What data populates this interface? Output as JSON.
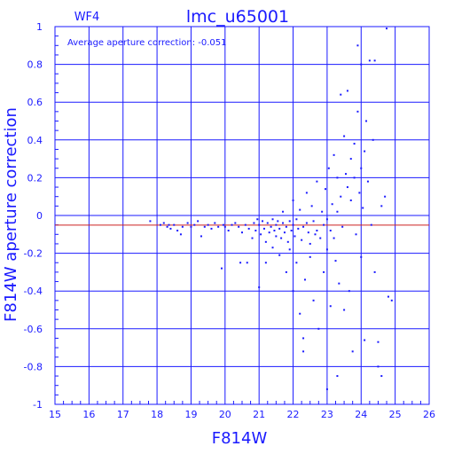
{
  "chart_data": {
    "type": "scatter",
    "chip_label": "WF4",
    "title": "lmc_u65001",
    "annotation": "Average aperture correction: -0.051",
    "xlabel": "F814W",
    "ylabel": "F814W aperture correction",
    "xlim": [
      15,
      26
    ],
    "ylim": [
      -1,
      1
    ],
    "x_ticks": [
      "15",
      "16",
      "17",
      "18",
      "19",
      "20",
      "21",
      "22",
      "23",
      "24",
      "25",
      "26"
    ],
    "y_ticks": [
      "-1",
      "-0.8",
      "-0.6",
      "-0.4",
      "-0.2",
      "0",
      "0.2",
      "0.4",
      "0.6",
      "0.8",
      "1"
    ],
    "grid": true,
    "reference_line": -0.051,
    "colors": {
      "axis": "#1a1aff",
      "points": "#1a1aff",
      "reference_line": "#cc2222"
    },
    "points": [
      [
        17.8,
        -0.03
      ],
      [
        18.1,
        -0.05
      ],
      [
        18.2,
        -0.04
      ],
      [
        18.3,
        -0.06
      ],
      [
        18.35,
        -0.05
      ],
      [
        18.4,
        -0.07
      ],
      [
        18.5,
        -0.05
      ],
      [
        18.6,
        -0.08
      ],
      [
        18.7,
        -0.1
      ],
      [
        18.75,
        -0.06
      ],
      [
        18.9,
        -0.04
      ],
      [
        19.0,
        -0.06
      ],
      [
        19.1,
        -0.05
      ],
      [
        19.2,
        -0.03
      ],
      [
        19.3,
        -0.11
      ],
      [
        19.4,
        -0.06
      ],
      [
        19.5,
        -0.05
      ],
      [
        19.6,
        -0.07
      ],
      [
        19.7,
        -0.04
      ],
      [
        19.8,
        -0.06
      ],
      [
        19.9,
        -0.28
      ],
      [
        19.95,
        -0.05
      ],
      [
        20.0,
        -0.06
      ],
      [
        20.1,
        -0.08
      ],
      [
        20.2,
        -0.05
      ],
      [
        20.3,
        -0.04
      ],
      [
        20.4,
        -0.06
      ],
      [
        20.45,
        -0.25
      ],
      [
        20.5,
        -0.09
      ],
      [
        20.6,
        -0.05
      ],
      [
        20.65,
        -0.25
      ],
      [
        20.7,
        -0.07
      ],
      [
        20.8,
        -0.12
      ],
      [
        20.85,
        -0.04
      ],
      [
        20.9,
        -0.08
      ],
      [
        20.95,
        -0.02
      ],
      [
        21.0,
        -0.05
      ],
      [
        21.0,
        -0.38
      ],
      [
        21.05,
        -0.1
      ],
      [
        21.1,
        -0.03
      ],
      [
        21.15,
        -0.07
      ],
      [
        21.2,
        -0.14
      ],
      [
        21.2,
        -0.25
      ],
      [
        21.25,
        -0.04
      ],
      [
        21.3,
        -0.09
      ],
      [
        21.35,
        -0.06
      ],
      [
        21.4,
        -0.02
      ],
      [
        21.4,
        -0.17
      ],
      [
        21.45,
        -0.08
      ],
      [
        21.5,
        -0.05
      ],
      [
        21.5,
        -0.11
      ],
      [
        21.55,
        -0.03
      ],
      [
        21.6,
        -0.07
      ],
      [
        21.6,
        -0.21
      ],
      [
        21.65,
        -0.12
      ],
      [
        21.7,
        -0.04
      ],
      [
        21.7,
        0.02
      ],
      [
        21.75,
        -0.09
      ],
      [
        21.8,
        -0.06
      ],
      [
        21.8,
        -0.3
      ],
      [
        21.85,
        -0.14
      ],
      [
        21.9,
        -0.03
      ],
      [
        21.9,
        -0.18
      ],
      [
        21.95,
        -0.08
      ],
      [
        22.0,
        -0.05
      ],
      [
        22.0,
        -0.4
      ],
      [
        22.0,
        0.08
      ],
      [
        22.05,
        -0.11
      ],
      [
        22.1,
        -0.02
      ],
      [
        22.1,
        -0.25
      ],
      [
        22.15,
        -0.07
      ],
      [
        22.2,
        -0.52
      ],
      [
        22.2,
        0.03
      ],
      [
        22.25,
        -0.13
      ],
      [
        22.3,
        -0.06
      ],
      [
        22.3,
        -0.72
      ],
      [
        22.35,
        -0.34
      ],
      [
        22.4,
        -0.04
      ],
      [
        22.4,
        0.12
      ],
      [
        22.45,
        -0.09
      ],
      [
        22.5,
        -0.15
      ],
      [
        22.5,
        -0.22
      ],
      [
        22.55,
        0.05
      ],
      [
        22.6,
        -0.03
      ],
      [
        22.6,
        -0.45
      ],
      [
        22.65,
        -0.1
      ],
      [
        22.7,
        -0.08
      ],
      [
        22.7,
        0.18
      ],
      [
        22.75,
        -0.6
      ],
      [
        22.8,
        -0.12
      ],
      [
        22.85,
        0.02
      ],
      [
        22.9,
        -0.05
      ],
      [
        22.9,
        -0.3
      ],
      [
        22.95,
        0.14
      ],
      [
        23.0,
        -0.02
      ],
      [
        23.0,
        -0.18
      ],
      [
        23.05,
        0.25
      ],
      [
        23.1,
        -0.08
      ],
      [
        23.1,
        -0.48
      ],
      [
        23.15,
        0.06
      ],
      [
        23.2,
        0.32
      ],
      [
        23.2,
        -0.12
      ],
      [
        23.25,
        -0.24
      ],
      [
        23.3,
        0.02
      ],
      [
        23.3,
        0.2
      ],
      [
        23.35,
        -0.36
      ],
      [
        23.4,
        0.64
      ],
      [
        23.4,
        0.1
      ],
      [
        23.45,
        -0.06
      ],
      [
        23.5,
        0.42
      ],
      [
        23.5,
        -0.5
      ],
      [
        23.55,
        0.22
      ],
      [
        23.6,
        0.66
      ],
      [
        23.6,
        0.15
      ],
      [
        23.65,
        -0.4
      ],
      [
        23.7,
        0.08
      ],
      [
        23.7,
        0.3
      ],
      [
        23.75,
        -0.72
      ],
      [
        23.8,
        0.38
      ],
      [
        23.8,
        0.2
      ],
      [
        23.85,
        -0.1
      ],
      [
        23.9,
        0.9
      ],
      [
        23.9,
        0.55
      ],
      [
        23.95,
        0.12
      ],
      [
        24.0,
        0.8
      ],
      [
        24.0,
        -0.22
      ],
      [
        24.0,
        0.25
      ],
      [
        24.05,
        0.04
      ],
      [
        24.1,
        -0.66
      ],
      [
        24.1,
        0.34
      ],
      [
        24.15,
        0.5
      ],
      [
        24.2,
        0.18
      ],
      [
        24.25,
        0.82
      ],
      [
        24.3,
        -0.05
      ],
      [
        24.35,
        0.4
      ],
      [
        24.4,
        0.82
      ],
      [
        24.4,
        -0.3
      ],
      [
        24.5,
        -0.67
      ],
      [
        24.6,
        -0.85
      ],
      [
        24.7,
        0.1
      ],
      [
        24.75,
        0.99
      ],
      [
        24.8,
        -0.43
      ],
      [
        24.9,
        -0.45
      ],
      [
        24.5,
        -0.8
      ],
      [
        22.3,
        -0.65
      ],
      [
        23.0,
        -0.92
      ],
      [
        23.3,
        -0.85
      ],
      [
        24.6,
        0.05
      ]
    ]
  }
}
